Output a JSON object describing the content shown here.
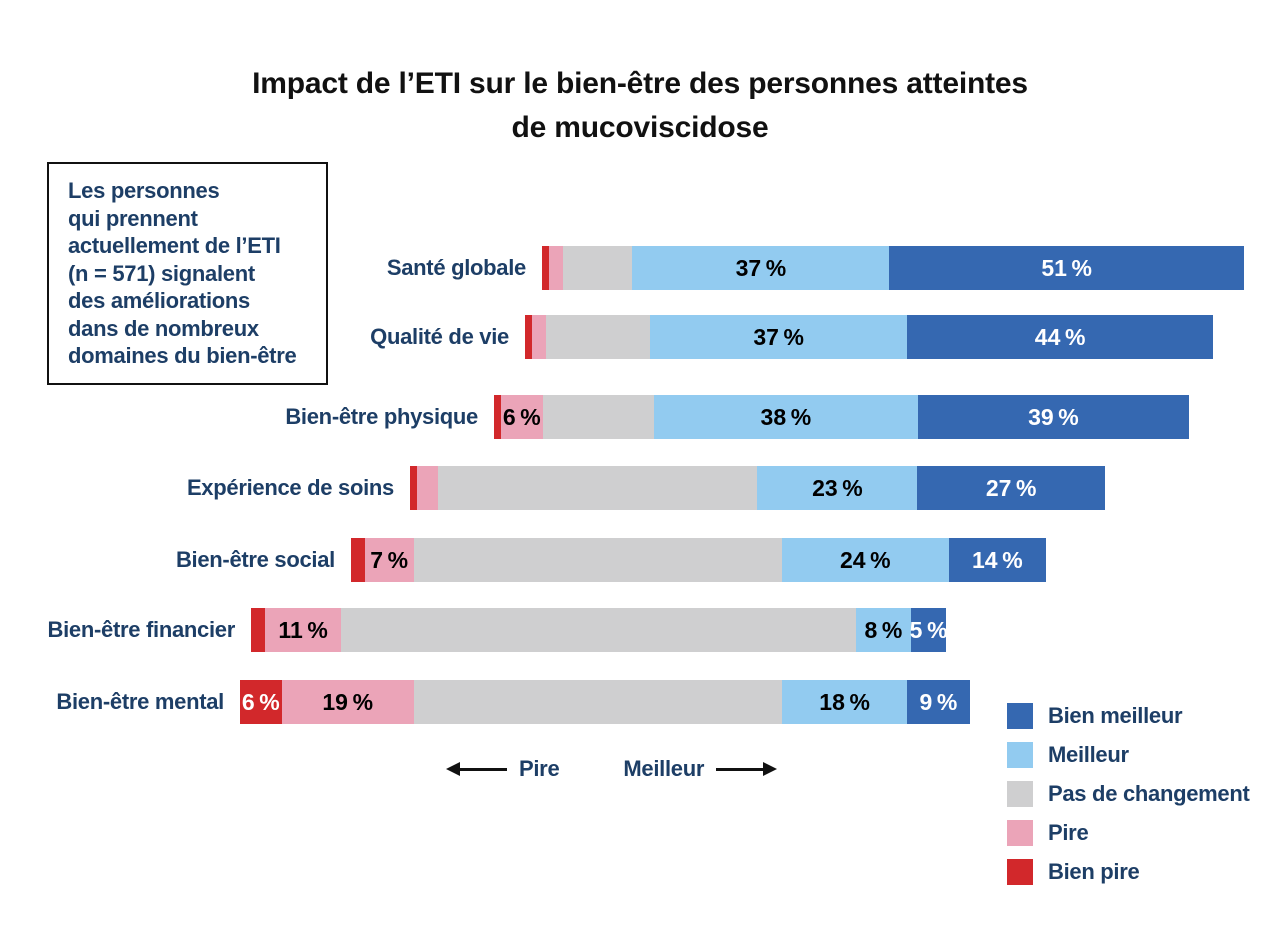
{
  "title": "Impact de l’ETI sur le bien-être des personnes atteintes\nde mucoviscidose",
  "annotation_box": {
    "text": "Les personnes\nqui prennent\nactuellement de l’ETI\n(n = 571) signalent\ndes améliorations\ndans de nombreux\ndomaines du bien-être"
  },
  "axis_annotation": {
    "worse_label": "Pire",
    "better_label": "Meilleur"
  },
  "legend": {
    "items": [
      {
        "label": "Bien meilleur",
        "color": "#3568b1"
      },
      {
        "label": "Meilleur",
        "color": "#92cbf0"
      },
      {
        "label": "Pas de changement",
        "color": "#cfcfd0"
      },
      {
        "label": "Pire",
        "color": "#eba4b8"
      },
      {
        "label": "Bien pire",
        "color": "#d2282b"
      }
    ]
  },
  "colors": {
    "bien_meilleur": "#3568b1",
    "meilleur": "#92cbf0",
    "pas_de_changement": "#cfcfd0",
    "pire": "#eba4b8",
    "bien_pire": "#d2282b",
    "heading_text": "#111111",
    "navy_text": "#1d3e66",
    "background": "#ffffff"
  },
  "chart_data": {
    "type": "bar",
    "subtype": "diverging-stacked-horizontal",
    "title": "Impact de l’ETI sur le bien-être des personnes atteintes de mucoviscidose",
    "units": "%",
    "categories": [
      "Santé globale",
      "Qualité de vie",
      "Bien-être physique",
      "Expérience de soins",
      "Bien-être social",
      "Bien-être financier",
      "Bien-être mental"
    ],
    "series": [
      {
        "name": "Bien pire",
        "color": "#d2282b",
        "text_color": "#ffffff",
        "values": [
          1,
          1,
          1,
          1,
          2,
          2,
          6
        ],
        "bar_labels": [
          "",
          "",
          "",
          "",
          "",
          "",
          "6 %"
        ]
      },
      {
        "name": "Pire",
        "color": "#eba4b8",
        "text_color": "#000000",
        "values": [
          2,
          2,
          6,
          3,
          7,
          11,
          19
        ],
        "bar_labels": [
          "",
          "",
          "6 %",
          "",
          "7 %",
          "11 %",
          "19 %"
        ]
      },
      {
        "name": "Pas de changement",
        "color": "#cfcfd0",
        "text_color": "#000000",
        "values": [
          10,
          15,
          16,
          46,
          53,
          74,
          53
        ],
        "bar_labels": [
          "",
          "",
          "",
          "",
          "",
          "",
          ""
        ]
      },
      {
        "name": "Meilleur",
        "color": "#92cbf0",
        "text_color": "#000000",
        "values": [
          37,
          37,
          38,
          23,
          24,
          8,
          18
        ],
        "bar_labels": [
          "37 %",
          "37 %",
          "38 %",
          "23 %",
          "24 %",
          "8 %",
          "18 %"
        ]
      },
      {
        "name": "Bien meilleur",
        "color": "#3568b1",
        "text_color": "#ffffff",
        "values": [
          51,
          44,
          39,
          27,
          14,
          5,
          9
        ],
        "bar_labels": [
          "51 %",
          "44 %",
          "39 %",
          "27 %",
          "14 %",
          "5 %",
          "9 %"
        ]
      }
    ],
    "center_annotation": {
      "left": "Pire",
      "right": "Meilleur"
    },
    "legend_position": "bottom-right",
    "axis_hidden": true
  }
}
